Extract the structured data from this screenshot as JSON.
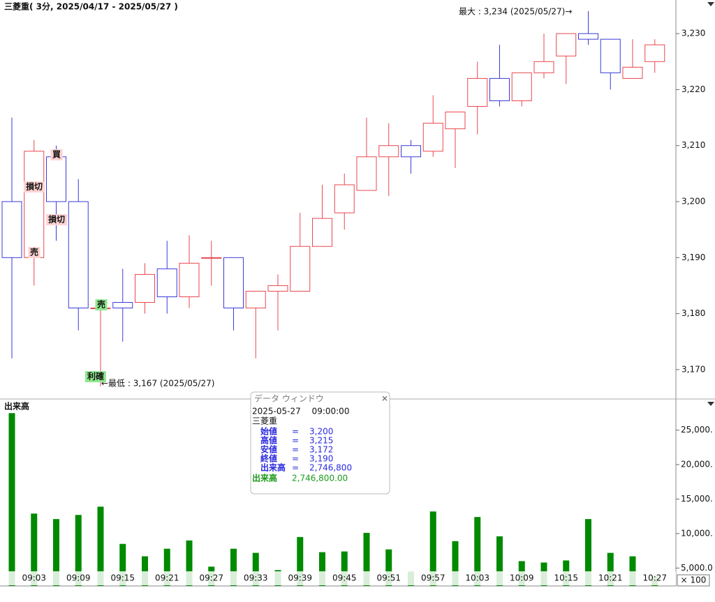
{
  "chart_data": [
    {
      "type": "candlestick",
      "title": "三菱重( 3分, 2025/04/17 - 2025/05/27 )",
      "open": [
        3200,
        3190,
        3208,
        3200,
        3181,
        3182,
        3182,
        3188,
        3183,
        3190,
        3190,
        3181,
        3184,
        3184,
        3192,
        3198,
        3202,
        3208,
        3210,
        3209,
        3213,
        3217,
        3222,
        3218,
        3223,
        3226,
        3230,
        3229,
        3222,
        3225
      ],
      "high": [
        3215,
        3211,
        3210,
        3204,
        3181,
        3188,
        3189,
        3193,
        3194,
        3193,
        3190,
        3184,
        3187,
        3198,
        3203,
        3205,
        3215,
        3214,
        3211,
        3219,
        3216,
        3225,
        3228,
        3223,
        3230,
        3230,
        3234,
        3229,
        3229,
        3229
      ],
      "low": [
        3172,
        3185,
        3193,
        3177,
        3167,
        3175,
        3180,
        3180,
        3181,
        3185,
        3177,
        3172,
        3177,
        3184,
        3192,
        3195,
        3202,
        3201,
        3205,
        3208,
        3206,
        3212,
        3217,
        3217,
        3222,
        3221,
        3228,
        3220,
        3222,
        3223
      ],
      "close": [
        3190,
        3209,
        3200,
        3181,
        3181,
        3181,
        3187,
        3183,
        3189,
        3190,
        3181,
        3184,
        3185,
        3192,
        3197,
        3203,
        3208,
        3210,
        3208,
        3214,
        3216,
        3222,
        3218,
        3223,
        3225,
        3230,
        3229,
        3223,
        3224,
        3228
      ],
      "up_color": "#e8474f",
      "down_color": "#3a3ad8",
      "ylim": [
        3165,
        3236
      ],
      "yticks": [
        {
          "value": 3170,
          "label": "3,170"
        },
        {
          "value": 3180,
          "label": "3,180"
        },
        {
          "value": 3190,
          "label": "3,190"
        },
        {
          "value": 3200,
          "label": "3,200"
        },
        {
          "value": 3210,
          "label": "3,210"
        },
        {
          "value": 3220,
          "label": "3,220"
        },
        {
          "value": 3230,
          "label": "3,230"
        }
      ],
      "max_label": "最大 : 3,234 (2025/05/27)→",
      "min_label": "←最低 : 3,167 (2025/05/27)",
      "signals": [
        {
          "label": "損切",
          "color": "#ffd3d3"
        },
        {
          "label": "売",
          "color": "#ffd3d3"
        },
        {
          "label": "買",
          "color": "#ffd3d3"
        },
        {
          "label": "損切",
          "color": "#ffd3d3"
        },
        {
          "label": "売",
          "color": "#8fe88f"
        },
        {
          "label": "利確",
          "color": "#8fe88f"
        }
      ]
    },
    {
      "type": "bar",
      "title": "出来高",
      "unit": "× 100",
      "color": "#008a00",
      "categories": [
        null,
        "09:03",
        null,
        "09:09",
        null,
        "09:15",
        null,
        "09:21",
        null,
        "09:27",
        null,
        "09:33",
        null,
        "09:39",
        null,
        "09:45",
        null,
        "09:51",
        null,
        "09:57",
        null,
        "10:03",
        null,
        "10:09",
        null,
        "10:15",
        null,
        "10:21",
        null,
        "10:27"
      ],
      "values": [
        27468,
        12900,
        12100,
        12700,
        13900,
        8500,
        6700,
        7800,
        9000,
        5200,
        7800,
        7200,
        4700,
        9500,
        7300,
        7400,
        10100,
        7700,
        4500,
        13200,
        8900,
        12400,
        9600,
        6000,
        5800,
        6100,
        12100,
        7200,
        6700,
        3800
      ],
      "ylim": [
        2400,
        28200
      ],
      "yticks": [
        {
          "value": 5000,
          "label": "5,000.0"
        },
        {
          "value": 10000,
          "label": "10,000."
        },
        {
          "value": 15000,
          "label": "15,000."
        },
        {
          "value": 20000,
          "label": "20,000."
        },
        {
          "value": 25000,
          "label": "25,000."
        }
      ]
    }
  ],
  "data_window": {
    "title": "データ ウィンドウ",
    "datetime": "2025-05-27　 09:00:00",
    "symbol": "三菱重",
    "rows": [
      [
        "始値",
        "=",
        "3,200"
      ],
      [
        "高値",
        "=",
        "3,215"
      ],
      [
        "安値",
        "=",
        "3,172"
      ],
      [
        "終値",
        "=",
        "3,190"
      ],
      [
        "出来高",
        "=",
        "2,746,800"
      ]
    ],
    "volume_label": "出来高",
    "volume_value": "2,746,800.00"
  }
}
